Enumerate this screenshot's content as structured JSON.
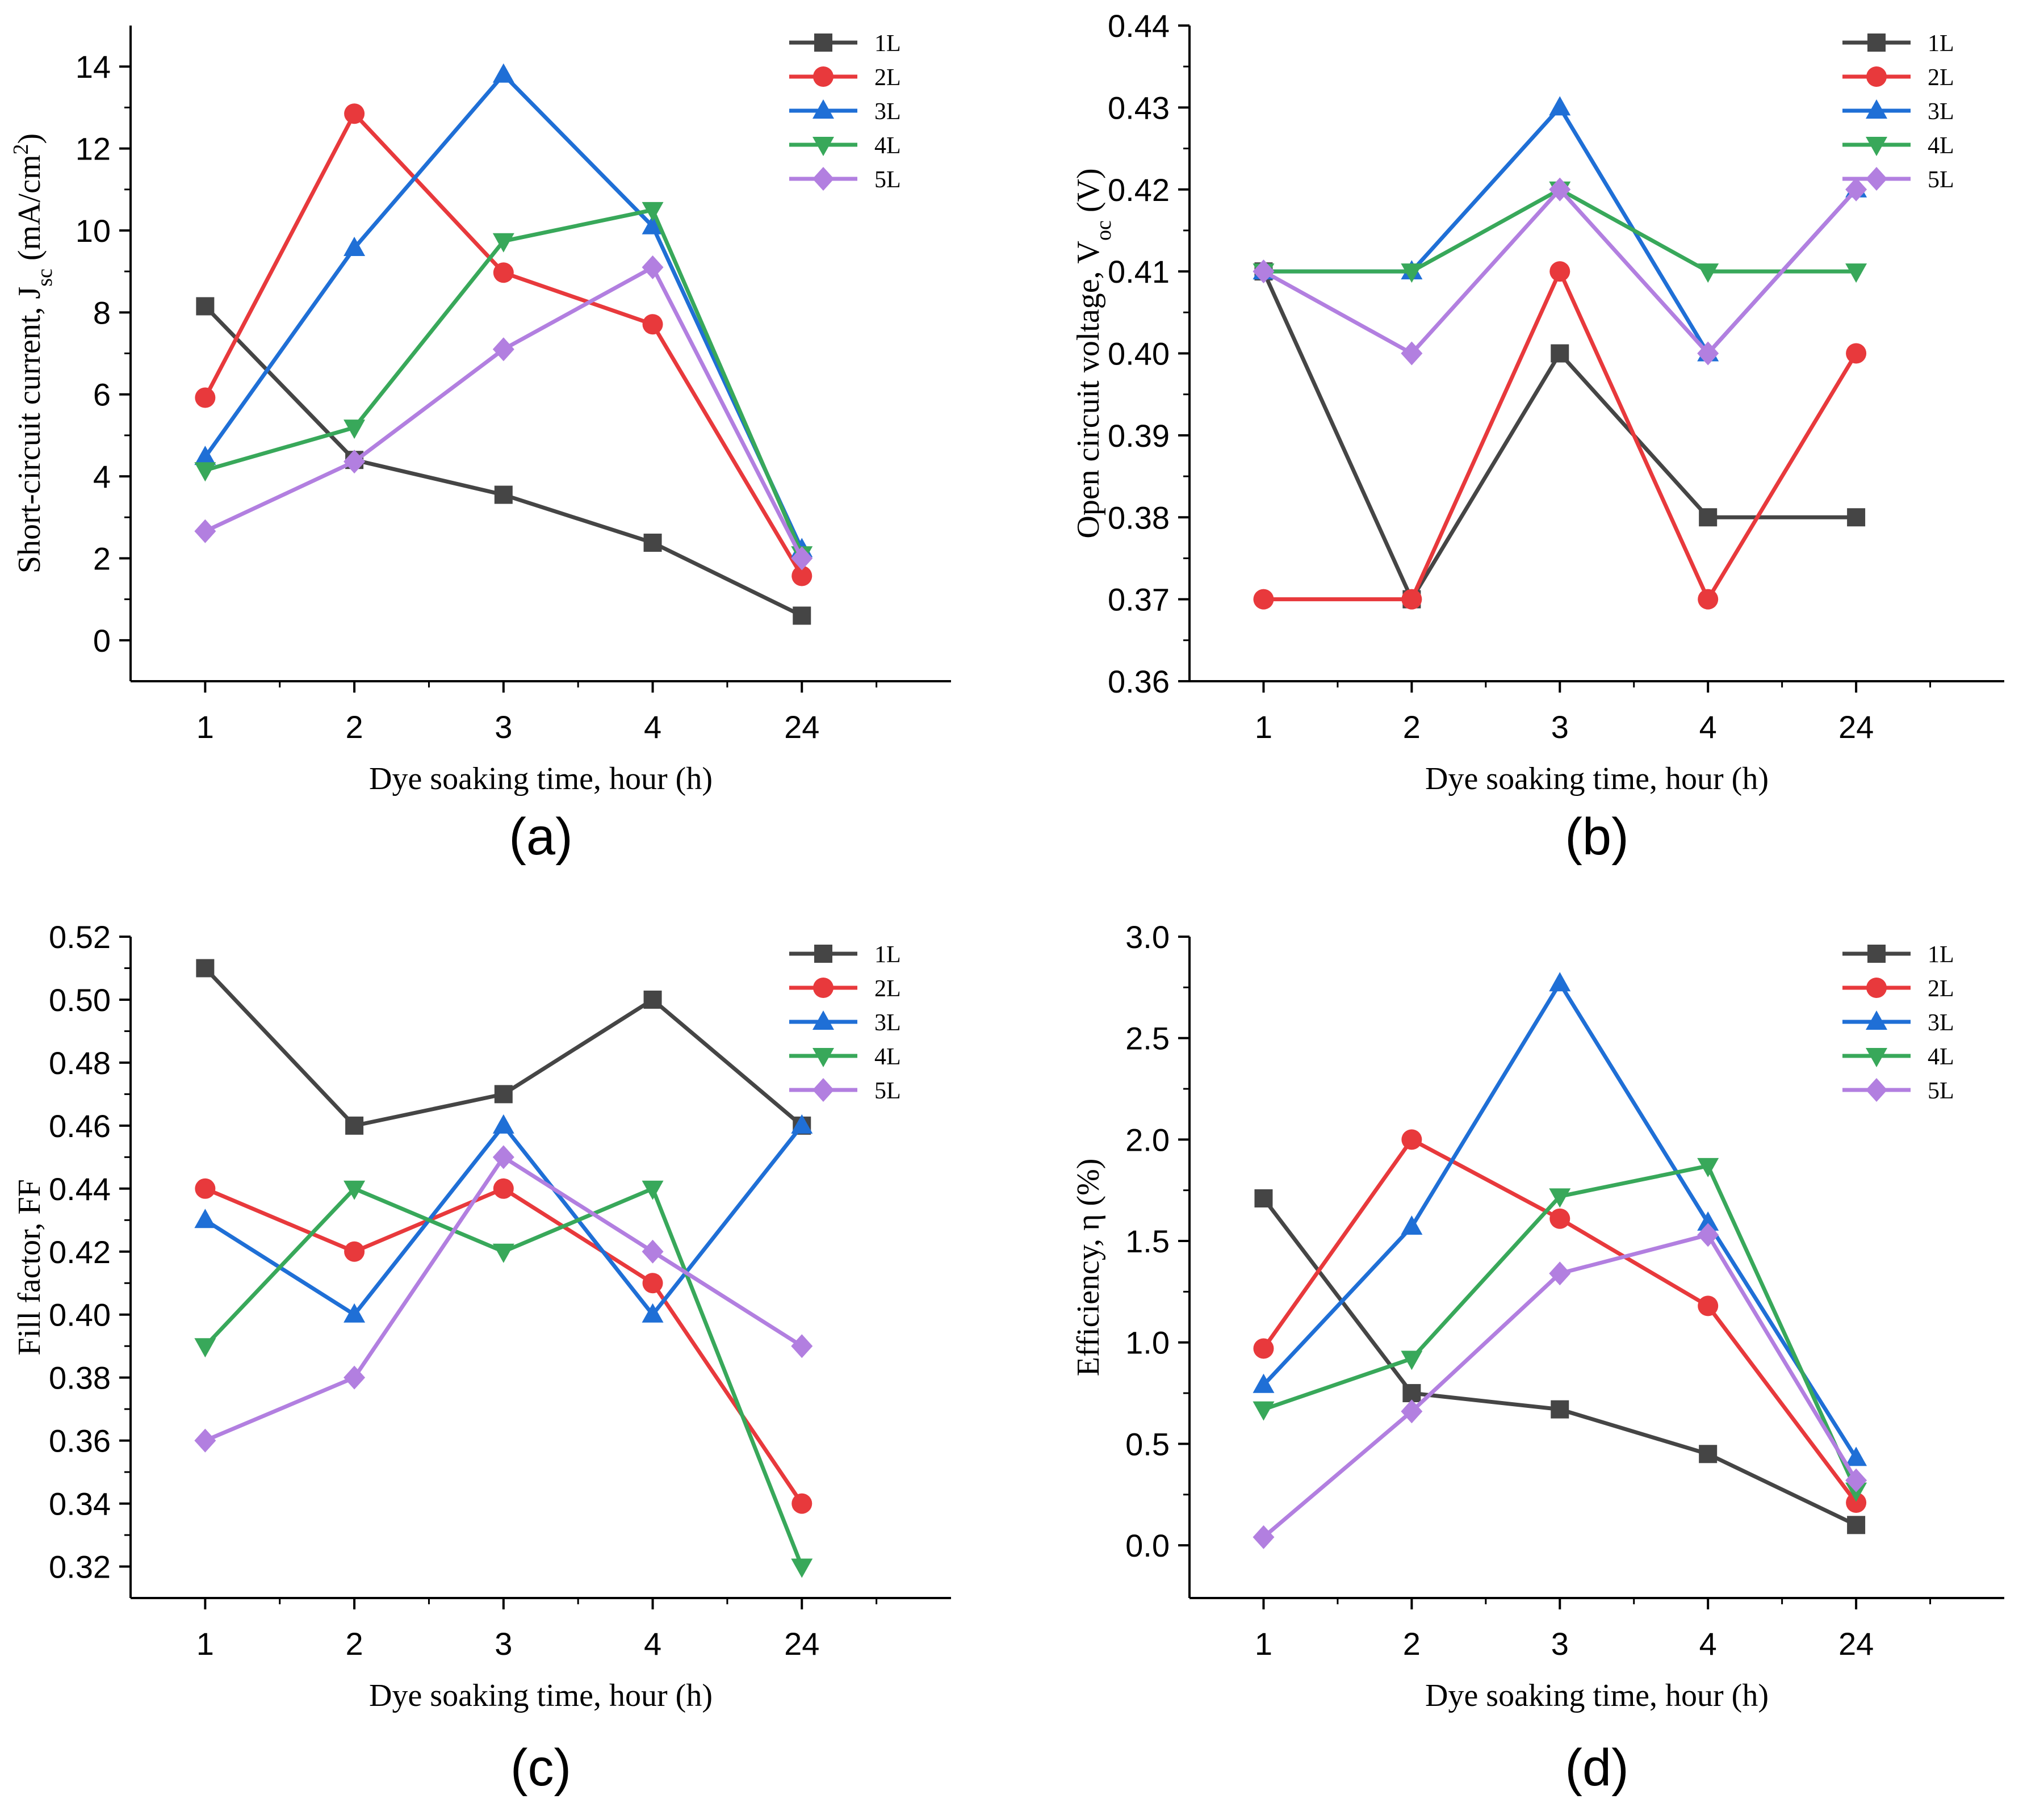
{
  "figure": {
    "styles": [
      {
        "name": "1L",
        "color": "#454545",
        "marker": "square"
      },
      {
        "name": "2L",
        "color": "#e8393c",
        "marker": "circle"
      },
      {
        "name": "3L",
        "color": "#1f6fd6",
        "marker": "triangle-up"
      },
      {
        "name": "4L",
        "color": "#38a85a",
        "marker": "triangle-down"
      },
      {
        "name": "5L",
        "color": "#b27fe0",
        "marker": "diamond"
      }
    ]
  },
  "chart_data": [
    {
      "panel": "(a)",
      "type": "line",
      "title": "",
      "xlabel": "Dye soaking time, hour (h)",
      "ylabel_main": "Short-circuit current, J",
      "ylabel_sub": "sc",
      "ylabel_unit": " (mA/cm",
      "ylabel_sup": "2",
      "ylabel_end": ")",
      "categories": [
        "1",
        "2",
        "3",
        "4",
        "24"
      ],
      "ylim": [
        -1,
        15
      ],
      "yticks": [
        0,
        2,
        4,
        6,
        8,
        10,
        12,
        14
      ],
      "ytick_labels": [
        "0",
        "2",
        "4",
        "6",
        "8",
        "10",
        "12",
        "14"
      ],
      "legend_position": "top-right",
      "series": [
        {
          "name": "1L",
          "values": [
            8.15,
            4.4,
            3.55,
            2.38,
            0.6
          ]
        },
        {
          "name": "2L",
          "values": [
            5.92,
            12.85,
            8.97,
            7.71,
            1.57
          ]
        },
        {
          "name": "3L",
          "values": [
            4.47,
            9.57,
            13.8,
            10.1,
            2.22
          ]
        },
        {
          "name": "4L",
          "values": [
            4.15,
            5.19,
            9.74,
            10.5,
            2.1
          ]
        },
        {
          "name": "5L",
          "values": [
            2.66,
            4.36,
            7.1,
            9.1,
            2.0
          ]
        }
      ]
    },
    {
      "panel": "(b)",
      "type": "line",
      "title": "",
      "xlabel": "Dye soaking time, hour (h)",
      "ylabel_main": "Open circuit voltage, V",
      "ylabel_sub": "oc",
      "ylabel_unit": " (V)",
      "ylabel_sup": "",
      "ylabel_end": "",
      "categories": [
        "1",
        "2",
        "3",
        "4",
        "24"
      ],
      "ylim": [
        0.36,
        0.44
      ],
      "yticks": [
        0.36,
        0.37,
        0.38,
        0.39,
        0.4,
        0.41,
        0.42,
        0.43,
        0.44
      ],
      "ytick_labels": [
        "0.36",
        "0.37",
        "0.38",
        "0.39",
        "0.40",
        "0.41",
        "0.42",
        "0.43",
        "0.44"
      ],
      "legend_position": "top-right",
      "series": [
        {
          "name": "1L",
          "values": [
            0.41,
            0.37,
            0.4,
            0.38,
            0.38
          ]
        },
        {
          "name": "2L",
          "values": [
            0.37,
            0.37,
            0.41,
            0.37,
            0.4
          ]
        },
        {
          "name": "3L",
          "values": [
            0.41,
            0.41,
            0.43,
            0.4,
            0.42
          ]
        },
        {
          "name": "4L",
          "values": [
            0.41,
            0.41,
            0.42,
            0.41,
            0.41
          ]
        },
        {
          "name": "5L",
          "values": [
            0.41,
            0.4,
            0.42,
            0.4,
            0.42
          ]
        }
      ]
    },
    {
      "panel": "(c)",
      "type": "line",
      "title": "",
      "xlabel": "Dye soaking time, hour (h)",
      "ylabel_main": "Fill factor, FF",
      "ylabel_sub": "",
      "ylabel_unit": "",
      "ylabel_sup": "",
      "ylabel_end": "",
      "categories": [
        "1",
        "2",
        "3",
        "4",
        "24"
      ],
      "ylim": [
        0.31,
        0.52
      ],
      "yticks": [
        0.32,
        0.34,
        0.36,
        0.38,
        0.4,
        0.42,
        0.44,
        0.46,
        0.48,
        0.5,
        0.52
      ],
      "ytick_labels": [
        "0.32",
        "0.34",
        "0.36",
        "0.38",
        "0.40",
        "0.42",
        "0.44",
        "0.46",
        "0.48",
        "0.50",
        "0.52"
      ],
      "legend_position": "top-right",
      "series": [
        {
          "name": "1L",
          "values": [
            0.51,
            0.46,
            0.47,
            0.5,
            0.46
          ]
        },
        {
          "name": "2L",
          "values": [
            0.44,
            0.42,
            0.44,
            0.41,
            0.34
          ]
        },
        {
          "name": "3L",
          "values": [
            0.43,
            0.4,
            0.46,
            0.4,
            0.46
          ]
        },
        {
          "name": "4L",
          "values": [
            0.39,
            0.44,
            0.42,
            0.44,
            0.32
          ]
        },
        {
          "name": "5L",
          "values": [
            0.36,
            0.38,
            0.45,
            0.42,
            0.39
          ]
        }
      ]
    },
    {
      "panel": "(d)",
      "type": "line",
      "title": "",
      "xlabel": "Dye soaking time, hour (h)",
      "ylabel_main": "Efficiency, η (%)",
      "ylabel_sub": "",
      "ylabel_unit": "",
      "ylabel_sup": "",
      "ylabel_end": "",
      "categories": [
        "1",
        "2",
        "3",
        "4",
        "24"
      ],
      "ylim": [
        -0.26,
        3.0
      ],
      "yticks": [
        0.0,
        0.5,
        1.0,
        1.5,
        2.0,
        2.5,
        3.0
      ],
      "ytick_labels": [
        "0.0",
        "0.5",
        "1.0",
        "1.5",
        "2.0",
        "2.5",
        "3.0"
      ],
      "legend_position": "top-right",
      "series": [
        {
          "name": "1L",
          "values": [
            1.71,
            0.75,
            0.67,
            0.45,
            0.1
          ]
        },
        {
          "name": "2L",
          "values": [
            0.97,
            2.0,
            1.61,
            1.18,
            0.21
          ]
        },
        {
          "name": "3L",
          "values": [
            0.79,
            1.57,
            2.77,
            1.59,
            0.43
          ]
        },
        {
          "name": "4L",
          "values": [
            0.67,
            0.92,
            1.72,
            1.87,
            0.27
          ]
        },
        {
          "name": "5L",
          "values": [
            0.04,
            0.66,
            1.34,
            1.53,
            0.32
          ]
        }
      ]
    }
  ]
}
